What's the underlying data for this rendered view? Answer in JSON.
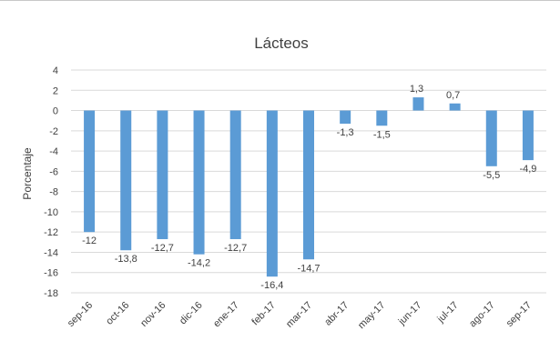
{
  "chart_data": {
    "type": "bar",
    "title": "Lácteos",
    "xlabel": "",
    "ylabel": "Porcentaje",
    "categories": [
      "sep-16",
      "oct-16",
      "nov-16",
      "dic-16",
      "ene-17",
      "feb-17",
      "mar-17",
      "abr-17",
      "may-17",
      "jun-17",
      "jul-17",
      "ago-17",
      "sep-17"
    ],
    "values": [
      -12,
      -13.8,
      -12.7,
      -14.2,
      -12.7,
      -16.4,
      -14.7,
      -1.3,
      -1.5,
      1.3,
      0.7,
      -5.5,
      -4.9
    ],
    "value_labels": [
      "-12",
      "-13,8",
      "-12,7",
      "-14,2",
      "-12,7",
      "-16,4",
      "-14,7",
      "-1,3",
      "-1,5",
      "1,3",
      "0,7",
      "-5,5",
      "-4,9"
    ],
    "ylim": [
      -18,
      4
    ],
    "yticks": [
      4,
      2,
      0,
      -2,
      -4,
      -6,
      -8,
      -10,
      -12,
      -14,
      -16,
      -18
    ],
    "ytick_labels": [
      "4",
      "2",
      "0",
      "-2",
      "-4",
      "-6",
      "-8",
      "-10",
      "-12",
      "-14",
      "-16",
      "-18"
    ],
    "grid": true,
    "legend": "none",
    "bar_color": "#5b9bd5"
  }
}
